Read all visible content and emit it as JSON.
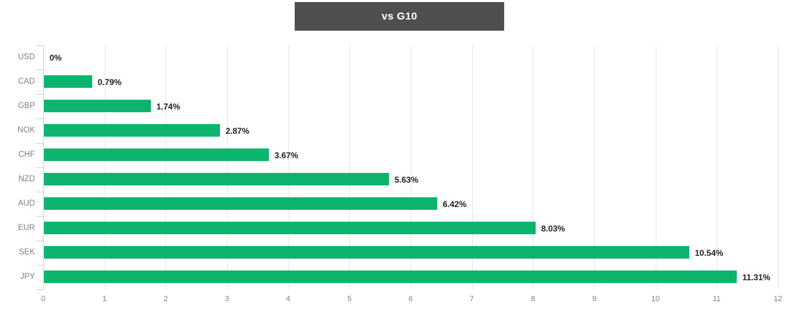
{
  "title": {
    "text": "vs G10",
    "bg_color": "#4f4f4f",
    "text_color": "#ffffff"
  },
  "chart_data": {
    "type": "bar",
    "orientation": "horizontal",
    "title": "vs G10",
    "categories": [
      "USD",
      "CAD",
      "GBP",
      "NOK",
      "CHF",
      "NZD",
      "AUD",
      "EUR",
      "SEK",
      "JPY"
    ],
    "values": [
      0,
      0.79,
      1.74,
      2.87,
      3.67,
      5.63,
      6.42,
      8.03,
      10.54,
      11.31
    ],
    "value_labels": [
      "0%",
      "0.79%",
      "1.74%",
      "2.87%",
      "3.67%",
      "5.63%",
      "6.42%",
      "8.03%",
      "10.54%",
      "11.31%"
    ],
    "xlabel": "",
    "ylabel": "",
    "xlim": [
      0,
      12
    ],
    "x_ticks": [
      0,
      1,
      2,
      3,
      4,
      5,
      6,
      7,
      8,
      9,
      10,
      11,
      12
    ],
    "grid": true,
    "legend": "none",
    "bar_color": "#0db46e",
    "grid_color": "#e6e6e6",
    "axis_line_color": "#ccd0d6",
    "category_label_color": "#808080",
    "tick_label_color": "#808080",
    "value_label_color": "#1f1f1f"
  }
}
